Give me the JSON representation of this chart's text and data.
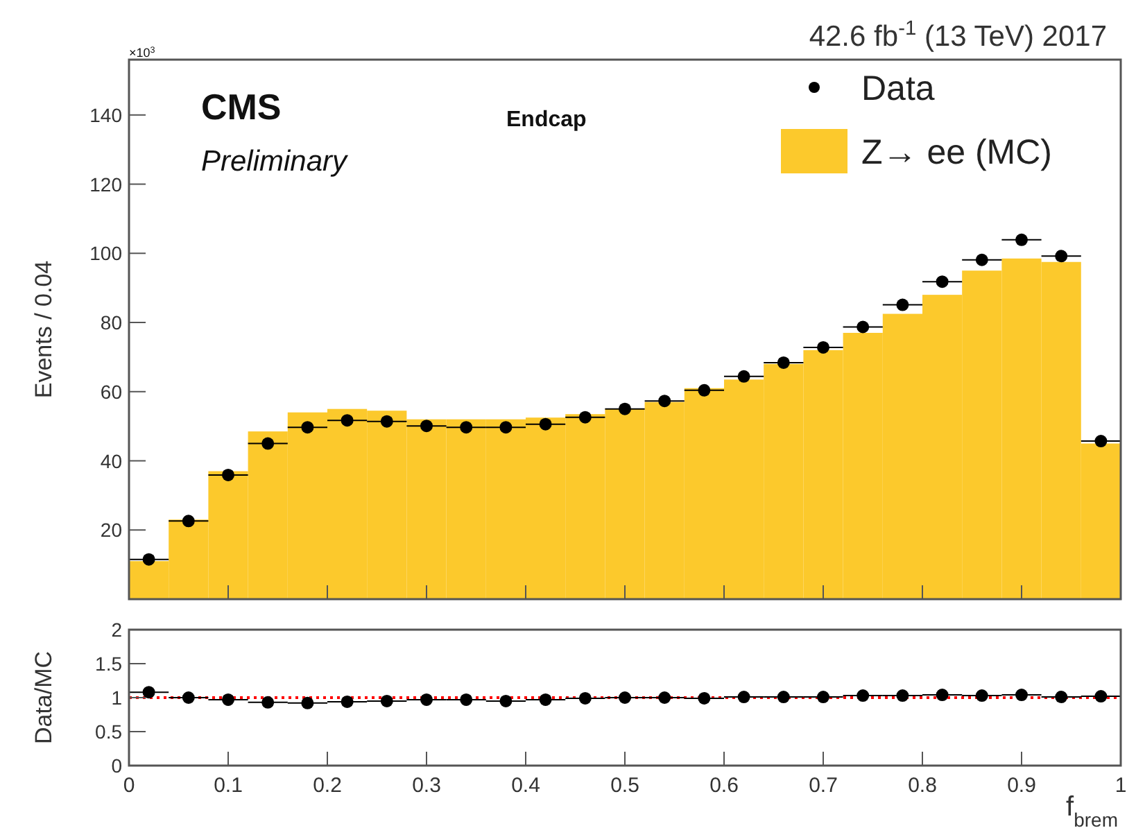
{
  "chart_data": [
    {
      "type": "histogram",
      "title": "42.6 fb$^{-1}$ (13 TeV) 2017",
      "ylabel": "Events / 0.04",
      "annotations": [
        "CMS",
        "Preliminary",
        "Endcap",
        "×10$^{3}$"
      ],
      "bins": [
        0,
        0.04,
        0.08,
        0.12,
        0.16,
        0.2,
        0.24,
        0.28,
        0.32,
        0.36,
        0.4,
        0.44,
        0.48,
        0.52,
        0.56,
        0.6,
        0.64,
        0.68,
        0.72,
        0.76,
        0.8,
        0.84,
        0.88,
        0.92,
        0.96,
        1
      ],
      "series": [
        {
          "name": "Data",
          "type": "scatter",
          "color": "#000000",
          "x": [
            0.02,
            0.06,
            0.1,
            0.14,
            0.18,
            0.22,
            0.26,
            0.3,
            0.34,
            0.38,
            0.42,
            0.46,
            0.5,
            0.54,
            0.58,
            0.62,
            0.66,
            0.7,
            0.74,
            0.78,
            0.82,
            0.86,
            0.9,
            0.94,
            0.98
          ],
          "values": [
            11.5,
            22.6,
            35.9,
            45,
            49.7,
            51.7,
            51.4,
            50.1,
            49.7,
            49.7,
            50.6,
            52.6,
            55,
            57.3,
            60.4,
            64.4,
            68.4,
            72.8,
            78.7,
            85.1,
            91.8,
            98.1,
            103.9,
            99.2,
            45.7
          ],
          "xerrors": [
            0.02,
            0.02,
            0.02,
            0.02,
            0.02,
            0.02,
            0.02,
            0.02,
            0.02,
            0.02,
            0.02,
            0.02,
            0.02,
            0.02,
            0.02,
            0.02,
            0.02,
            0.02,
            0.02,
            0.02,
            0.02,
            0.02,
            0.02,
            0.02,
            0.02
          ]
        },
        {
          "name": "Z→ ee (MC)",
          "color": "#fcc92c",
          "values": [
            11,
            23,
            37,
            48.5,
            54,
            55,
            54.5,
            52,
            52,
            52,
            52.5,
            53.5,
            55,
            57,
            61,
            63.5,
            68,
            72,
            77,
            82.5,
            88,
            95,
            98.5,
            97.5,
            45
          ]
        }
      ],
      "xlim": [
        0,
        1
      ],
      "ylim": [
        0,
        156
      ],
      "yticks": [
        20,
        40,
        60,
        80,
        100,
        120,
        140
      ],
      "xticks": [
        0,
        0.1,
        0.2,
        0.3,
        0.4,
        0.5,
        0.6,
        0.7,
        0.8,
        0.9,
        1
      ],
      "tick_labels": "y",
      "marker": "circle",
      "legend": "top right"
    },
    {
      "type": "scatter",
      "xlabel": "f$_{brem}$",
      "ylabel": "Data/MC",
      "x": [
        0.02,
        0.06,
        0.1,
        0.14,
        0.18,
        0.22,
        0.26,
        0.3,
        0.34,
        0.38,
        0.42,
        0.46,
        0.5,
        0.54,
        0.58,
        0.62,
        0.66,
        0.7,
        0.74,
        0.78,
        0.82,
        0.86,
        0.9,
        0.94,
        0.98
      ],
      "series": [
        {
          "color": "#000000",
          "values": [
            1.08,
            1.0,
            0.97,
            0.93,
            0.92,
            0.94,
            0.95,
            0.97,
            0.97,
            0.95,
            0.97,
            0.99,
            1.0,
            1.0,
            0.99,
            1.01,
            1.01,
            1.01,
            1.03,
            1.03,
            1.04,
            1.03,
            1.04,
            1.01,
            1.02
          ],
          "xerrors": [
            0.02,
            0.02,
            0.02,
            0.02,
            0.02,
            0.02,
            0.02,
            0.02,
            0.02,
            0.02,
            0.02,
            0.02,
            0.02,
            0.02,
            0.02,
            0.02,
            0.02,
            0.02,
            0.02,
            0.02,
            0.02,
            0.02,
            0.02,
            0.02,
            0.02
          ]
        }
      ],
      "xlim": [
        0,
        1
      ],
      "ylim": [
        0,
        2
      ],
      "yticks": [
        0,
        0.5,
        1,
        1.5,
        2
      ],
      "xticks": [
        0,
        0.1,
        0.2,
        0.3,
        0.4,
        0.5,
        0.6,
        0.7,
        0.8,
        0.9,
        1
      ],
      "ref_lines": [
        {
          "axis": "y",
          "value": 1,
          "color": "#ff0000",
          "line_style": "dotted"
        }
      ],
      "marker": "circle"
    }
  ]
}
